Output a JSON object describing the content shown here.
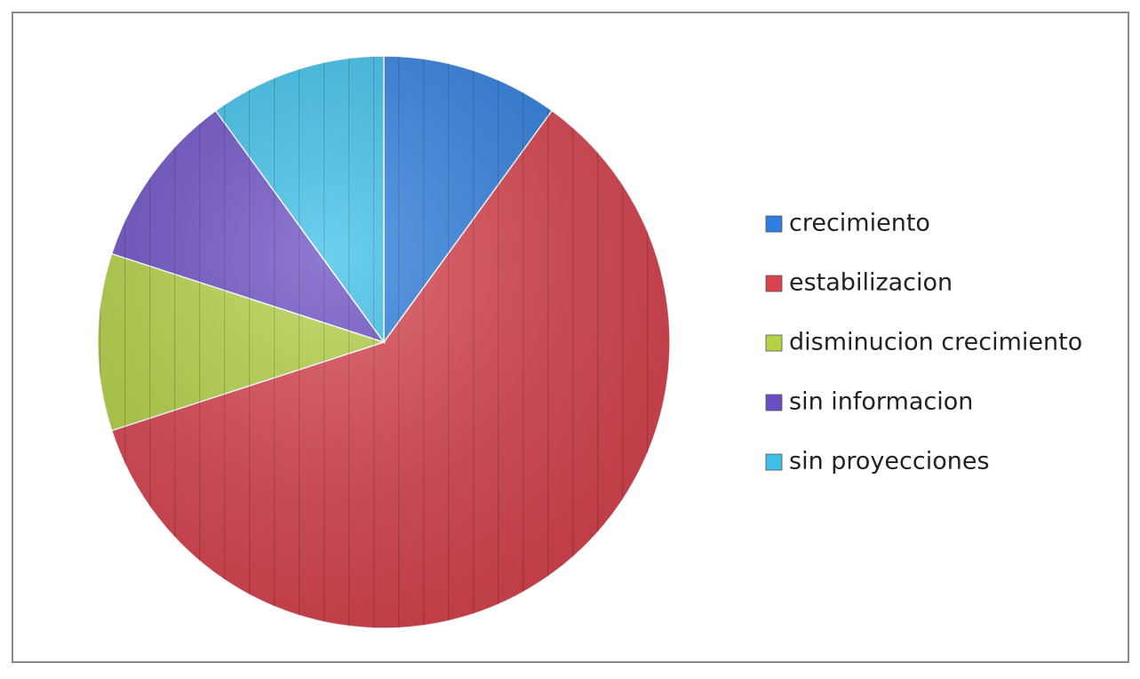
{
  "chart_data": {
    "type": "pie",
    "categories": [
      "crecimiento",
      "estabilizacion",
      "disminucion crecimiento",
      "sin informacion",
      "sin proyecciones"
    ],
    "values": [
      10,
      60,
      10,
      10,
      10
    ],
    "colors": [
      "#2f7fe0",
      "#d9434f",
      "#b3d244",
      "#6a4ec4",
      "#3cc0ea"
    ],
    "legend": "right"
  }
}
